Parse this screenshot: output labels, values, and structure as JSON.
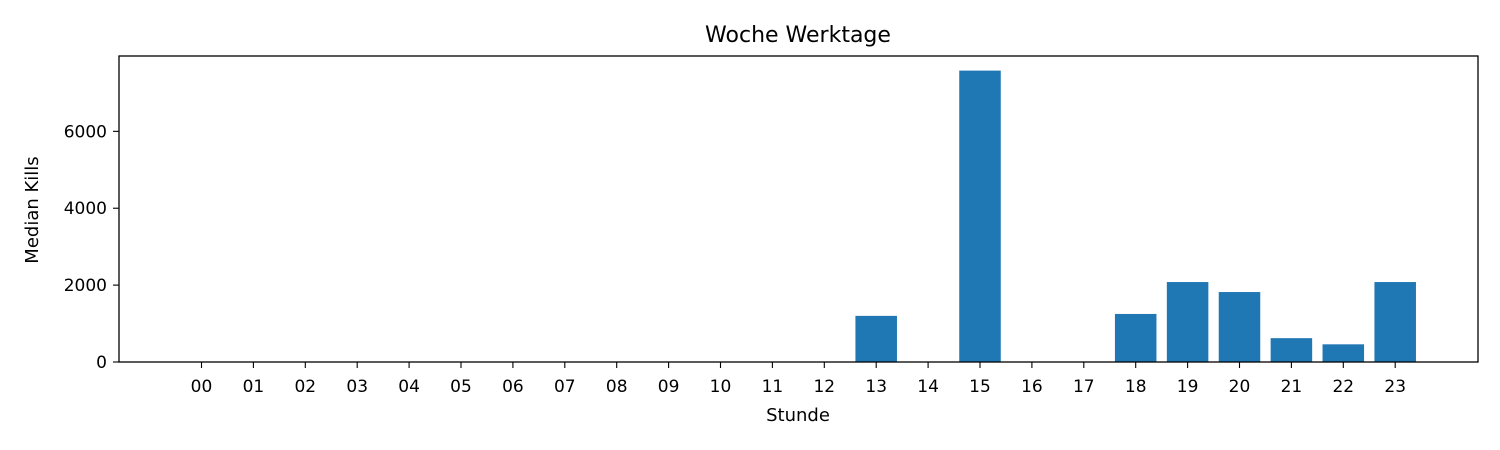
{
  "chart_data": {
    "type": "bar",
    "title": "Woche Werktage",
    "xlabel": "Stunde",
    "ylabel": "Median Kills",
    "categories": [
      "00",
      "01",
      "02",
      "03",
      "04",
      "05",
      "06",
      "07",
      "08",
      "09",
      "10",
      "11",
      "12",
      "13",
      "14",
      "15",
      "16",
      "17",
      "18",
      "19",
      "20",
      "21",
      "22",
      "23"
    ],
    "values": [
      0,
      0,
      0,
      0,
      0,
      0,
      0,
      0,
      0,
      0,
      0,
      0,
      0,
      1200,
      0,
      7580,
      0,
      0,
      1250,
      2080,
      1820,
      620,
      460,
      2080
    ],
    "ylim": [
      0,
      7960
    ],
    "yticks": [
      0,
      2000,
      4000,
      6000
    ],
    "bar_color": "#1f77b4",
    "grid": false
  }
}
